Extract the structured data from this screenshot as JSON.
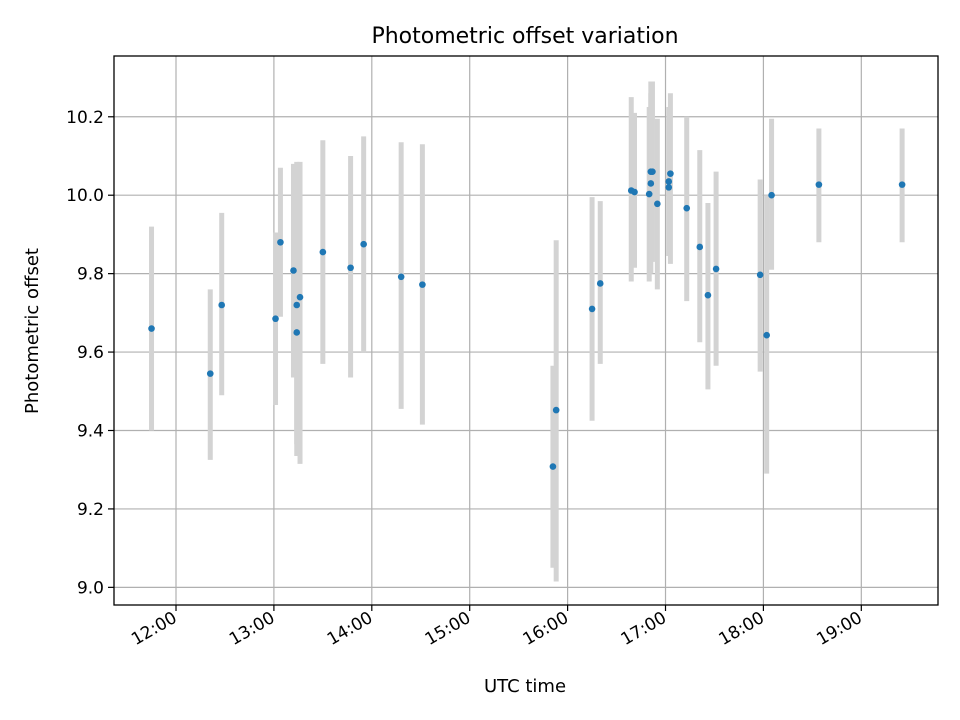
{
  "chart_data": {
    "type": "scatter",
    "title": "Photometric offset variation",
    "xlabel": "UTC time",
    "ylabel": "Photometric offset",
    "x_ticks": [
      "12:00",
      "13:00",
      "14:00",
      "15:00",
      "16:00",
      "17:00",
      "18:00",
      "19:00"
    ],
    "y_ticks": [
      9.0,
      9.2,
      9.4,
      9.6,
      9.8,
      10.0,
      10.2
    ],
    "y_tick_labels": [
      "9.0",
      "9.2",
      "9.4",
      "9.6",
      "9.8",
      "10.0",
      "10.2"
    ],
    "xlim": [
      "11:22",
      "19:47"
    ],
    "ylim": [
      8.955,
      10.355
    ],
    "grid": true,
    "colors": {
      "point": "#1f77b4",
      "errorbar": "#d3d3d3"
    },
    "points": [
      {
        "x": "11:45",
        "y": 9.66,
        "yerr_low": 9.4,
        "yerr_high": 9.92
      },
      {
        "x": "12:21",
        "y": 9.545,
        "yerr_low": 9.325,
        "yerr_high": 9.76
      },
      {
        "x": "12:28",
        "y": 9.72,
        "yerr_low": 9.49,
        "yerr_high": 9.955
      },
      {
        "x": "13:01",
        "y": 9.685,
        "yerr_low": 9.465,
        "yerr_high": 9.905
      },
      {
        "x": "13:04",
        "y": 9.88,
        "yerr_low": 9.69,
        "yerr_high": 10.07
      },
      {
        "x": "13:12",
        "y": 9.808,
        "yerr_low": 9.535,
        "yerr_high": 10.08
      },
      {
        "x": "13:14",
        "y": 9.72,
        "yerr_low": 9.365,
        "yerr_high": 10.08
      },
      {
        "x": "13:14",
        "y": 9.65,
        "yerr_low": 9.335,
        "yerr_high": 10.085
      },
      {
        "x": "13:16",
        "y": 9.74,
        "yerr_low": 9.315,
        "yerr_high": 10.085
      },
      {
        "x": "13:30",
        "y": 9.855,
        "yerr_low": 9.57,
        "yerr_high": 10.14
      },
      {
        "x": "13:47",
        "y": 9.815,
        "yerr_low": 9.535,
        "yerr_high": 10.1
      },
      {
        "x": "13:55",
        "y": 9.875,
        "yerr_low": 9.6,
        "yerr_high": 10.15
      },
      {
        "x": "14:18",
        "y": 9.792,
        "yerr_low": 9.455,
        "yerr_high": 10.135
      },
      {
        "x": "14:31",
        "y": 9.772,
        "yerr_low": 9.415,
        "yerr_high": 10.13
      },
      {
        "x": "15:51",
        "y": 9.308,
        "yerr_low": 9.05,
        "yerr_high": 9.565
      },
      {
        "x": "15:53",
        "y": 9.452,
        "yerr_low": 9.015,
        "yerr_high": 9.885
      },
      {
        "x": "16:15",
        "y": 9.71,
        "yerr_low": 9.425,
        "yerr_high": 9.995
      },
      {
        "x": "16:20",
        "y": 9.775,
        "yerr_low": 9.57,
        "yerr_high": 9.985
      },
      {
        "x": "16:39",
        "y": 10.012,
        "yerr_low": 9.78,
        "yerr_high": 10.25
      },
      {
        "x": "16:41",
        "y": 10.008,
        "yerr_low": 9.815,
        "yerr_high": 10.21
      },
      {
        "x": "16:50",
        "y": 10.003,
        "yerr_low": 9.78,
        "yerr_high": 10.225
      },
      {
        "x": "16:51",
        "y": 10.06,
        "yerr_low": 9.83,
        "yerr_high": 10.29
      },
      {
        "x": "16:51",
        "y": 10.03,
        "yerr_low": 9.8,
        "yerr_high": 10.26
      },
      {
        "x": "16:52",
        "y": 10.06,
        "yerr_low": 9.83,
        "yerr_high": 10.29
      },
      {
        "x": "16:55",
        "y": 9.978,
        "yerr_low": 9.76,
        "yerr_high": 10.195
      },
      {
        "x": "17:02",
        "y": 10.02,
        "yerr_low": 9.845,
        "yerr_high": 10.195
      },
      {
        "x": "17:02",
        "y": 10.035,
        "yerr_low": 9.845,
        "yerr_high": 10.225
      },
      {
        "x": "17:03",
        "y": 10.055,
        "yerr_low": 9.825,
        "yerr_high": 10.26
      },
      {
        "x": "17:13",
        "y": 9.967,
        "yerr_low": 9.73,
        "yerr_high": 10.2
      },
      {
        "x": "17:21",
        "y": 9.868,
        "yerr_low": 9.625,
        "yerr_high": 10.115
      },
      {
        "x": "17:26",
        "y": 9.745,
        "yerr_low": 9.505,
        "yerr_high": 9.98
      },
      {
        "x": "17:31",
        "y": 9.812,
        "yerr_low": 9.565,
        "yerr_high": 10.06
      },
      {
        "x": "17:58",
        "y": 9.797,
        "yerr_low": 9.55,
        "yerr_high": 10.04
      },
      {
        "x": "18:02",
        "y": 9.643,
        "yerr_low": 9.29,
        "yerr_high": 10.0
      },
      {
        "x": "18:05",
        "y": 10.0,
        "yerr_low": 9.81,
        "yerr_high": 10.195
      },
      {
        "x": "18:34",
        "y": 10.027,
        "yerr_low": 9.88,
        "yerr_high": 10.17
      },
      {
        "x": "19:25",
        "y": 10.027,
        "yerr_low": 9.88,
        "yerr_high": 10.17
      }
    ]
  }
}
